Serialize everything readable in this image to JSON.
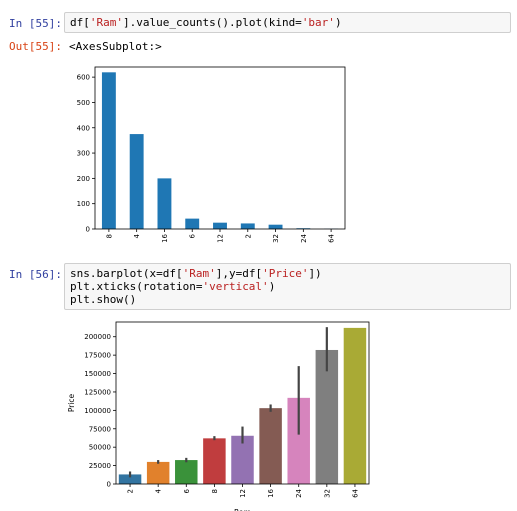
{
  "cells": [
    {
      "prompt": "In [55]:",
      "code_lines": [
        [
          {
            "t": "df[",
            "c": ""
          },
          {
            "t": "'Ram'",
            "c": "str"
          },
          {
            "t": "].value_counts().plot(kind=",
            "c": ""
          },
          {
            "t": "'bar'",
            "c": "str"
          },
          {
            "t": ")",
            "c": ""
          }
        ]
      ],
      "out_prompt": "Out[55]:",
      "out_text": "<AxesSubplot:>"
    },
    {
      "prompt": "In [56]:",
      "code_lines": [
        [
          {
            "t": "sns.barplot(x=df[",
            "c": ""
          },
          {
            "t": "'Ram'",
            "c": "str"
          },
          {
            "t": "],y=df[",
            "c": ""
          },
          {
            "t": "'Price'",
            "c": "str"
          },
          {
            "t": "])",
            "c": ""
          }
        ],
        [
          {
            "t": "plt.xticks(rotation=",
            "c": ""
          },
          {
            "t": "'vertical'",
            "c": "str"
          },
          {
            "t": ")",
            "c": ""
          }
        ],
        [
          {
            "t": "plt.show()",
            "c": ""
          }
        ]
      ]
    }
  ],
  "chart_data": [
    {
      "type": "bar",
      "categories": [
        "8",
        "4",
        "16",
        "6",
        "12",
        "2",
        "32",
        "24",
        "64"
      ],
      "values": [
        619,
        375,
        200,
        41,
        25,
        22,
        17,
        3,
        1
      ],
      "ylim": [
        0,
        640
      ],
      "yticks": [
        0,
        100,
        200,
        300,
        400,
        500,
        600
      ],
      "color": "#1f77b4",
      "xlabel": "",
      "ylabel": ""
    },
    {
      "type": "bar",
      "categories": [
        "2",
        "4",
        "6",
        "8",
        "12",
        "16",
        "24",
        "32",
        "64"
      ],
      "values": [
        13000,
        30000,
        32500,
        62000,
        65500,
        103000,
        117000,
        182000,
        212000
      ],
      "errors": [
        [
          9000,
          17000
        ],
        [
          27500,
          32500
        ],
        [
          29500,
          35500
        ],
        [
          59500,
          65000
        ],
        [
          55000,
          78000
        ],
        [
          98000,
          108000
        ],
        [
          67000,
          160000
        ],
        [
          153000,
          213000
        ],
        null
      ],
      "colors": [
        "#3274a1",
        "#e1812c",
        "#3a923a",
        "#c03d3e",
        "#9372b2",
        "#845b53",
        "#d684bd",
        "#7f7f7f",
        "#a9aa35"
      ],
      "ylim": [
        0,
        220000
      ],
      "yticks": [
        0,
        25000,
        50000,
        75000,
        100000,
        125000,
        150000,
        175000,
        200000
      ],
      "xlabel": "Ram",
      "ylabel": "Price"
    }
  ]
}
